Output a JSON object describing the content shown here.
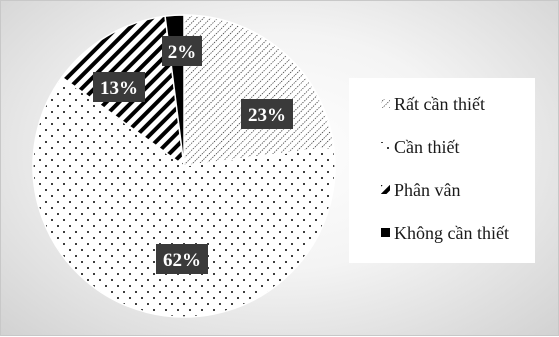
{
  "chart_data": {
    "type": "pie",
    "categories": [
      "Rất cần thiết",
      "Cần thiết",
      "Phân vân",
      "Không cần thiết"
    ],
    "values": [
      23,
      62,
      13,
      2
    ],
    "labels": [
      "23%",
      "62%",
      "13%",
      "2%"
    ],
    "legend_position": "right",
    "patterns": [
      "diagonal-hatch",
      "dotted",
      "wide-diagonal-stripes",
      "solid-black"
    ],
    "colors": {
      "slice_fill_background": "#ffffff",
      "pattern_ink": "#000000",
      "label_box": "#3a3a3a",
      "label_text": "#ffffff",
      "legend_box": "#ffffff"
    }
  }
}
